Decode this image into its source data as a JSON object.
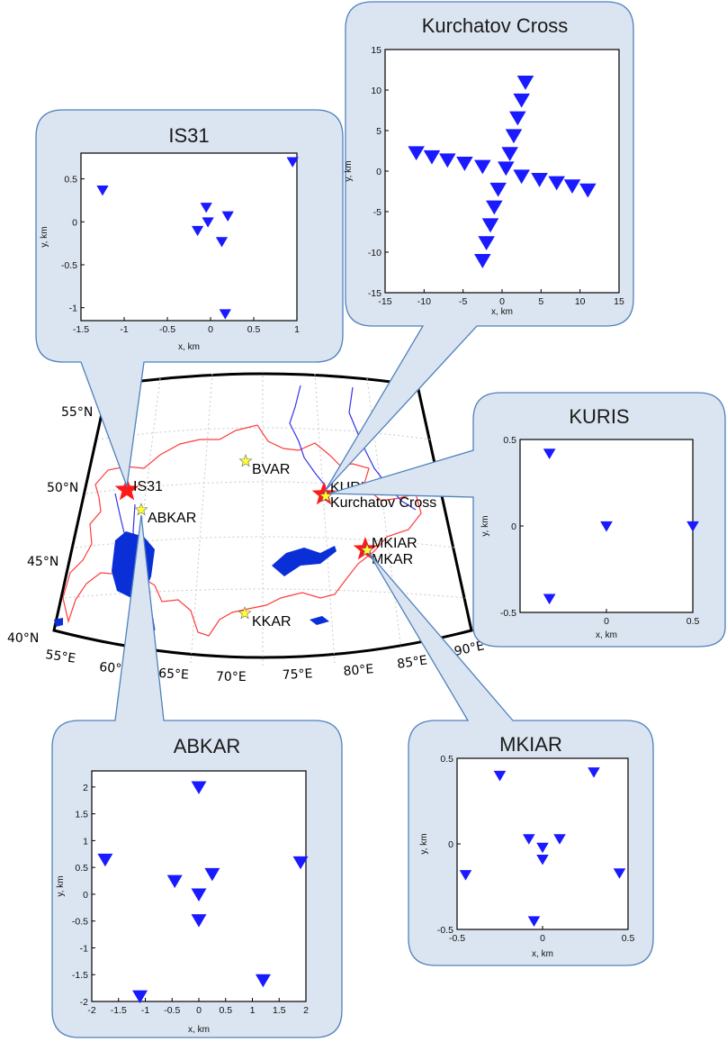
{
  "map": {
    "lat_labels": [
      "55°N",
      "50°N",
      "45°N",
      "40°N"
    ],
    "lon_labels": [
      "55°E",
      "60°E",
      "65°E",
      "70°E",
      "75°E",
      "80°E",
      "85°E",
      "90°E"
    ],
    "stations": [
      {
        "name": "IS31",
        "type": "major"
      },
      {
        "name": "ABKAR",
        "type": "minor"
      },
      {
        "name": "BVAR",
        "type": "minor"
      },
      {
        "name": "KURIS",
        "type": "major"
      },
      {
        "name": "Kurchatov Cross",
        "type": "minor"
      },
      {
        "name": "MKIAR",
        "type": "major"
      },
      {
        "name": "MKAR",
        "type": "minor"
      },
      {
        "name": "KKAR",
        "type": "minor"
      }
    ],
    "colors": {
      "border": "#ff3b3b",
      "rivers": "#3333ee",
      "lakes": "#0a2fd6",
      "major_star": "#ff1a1a",
      "minor_star": "#ffff33",
      "grid": "#c8c8c8",
      "callout": "#dbe5f1",
      "callout_edge": "#4f81bd"
    }
  },
  "chart_data": [
    {
      "type": "scatter",
      "title": "IS31",
      "xlabel": "x, km",
      "ylabel": "y, km",
      "xlim": [
        -1.5,
        1
      ],
      "ylim": [
        -1.15,
        0.8
      ],
      "xticks": [
        "-1.5",
        "-1",
        "-0.5",
        "0",
        "0.5",
        "1"
      ],
      "yticks": [
        "0.5",
        "0",
        "-0.5",
        "-1"
      ],
      "x": [
        -1.25,
        -0.05,
        -0.15,
        -0.03,
        0.2,
        0.13,
        0.17,
        0.95
      ],
      "y": [
        0.37,
        0.17,
        -0.1,
        0.0,
        0.07,
        -0.23,
        -1.07,
        0.7
      ]
    },
    {
      "type": "scatter",
      "title": "Kurchatov Cross",
      "xlabel": "x, km",
      "ylabel": "y, km",
      "xlim": [
        -15,
        15
      ],
      "ylim": [
        -15,
        15
      ],
      "xticks": [
        "-15",
        "-10",
        "-5",
        "0",
        "5",
        "10",
        "15"
      ],
      "yticks": [
        "15",
        "10",
        "5",
        "0",
        "-5",
        "-10",
        "-15"
      ],
      "x": [
        -11,
        -9,
        -7,
        -4.8,
        -2.5,
        2.5,
        4.8,
        7,
        9,
        11,
        3,
        2.5,
        2,
        1.5,
        1,
        0.5,
        -0.5,
        -1,
        -1.5,
        -2,
        -2.5
      ],
      "y": [
        2.3,
        1.8,
        1.4,
        1.0,
        0.6,
        -0.6,
        -1.0,
        -1.4,
        -1.8,
        -2.3,
        11,
        8.8,
        6.6,
        4.4,
        2.2,
        0.4,
        -2.2,
        -4.4,
        -6.6,
        -8.8,
        -11
      ]
    },
    {
      "type": "scatter",
      "title": "KURIS",
      "xlabel": "x, km",
      "ylabel": "y, km",
      "xlim": [
        -0.5,
        0.5
      ],
      "ylim": [
        -0.5,
        0.5
      ],
      "xticks": [
        "0",
        "0.5"
      ],
      "yticks": [
        "0.5",
        "0",
        "-0.5"
      ],
      "x": [
        -0.33,
        -0.33,
        0.0,
        0.5
      ],
      "y": [
        0.42,
        -0.42,
        0.0,
        0.0
      ]
    },
    {
      "type": "scatter",
      "title": "ABKAR",
      "xlabel": "x, km",
      "ylabel": "y, km",
      "xlim": [
        -2,
        2
      ],
      "ylim": [
        -2,
        2.3
      ],
      "xticks": [
        "-2",
        "-1.5",
        "-1",
        "-0.5",
        "0",
        "0.5",
        "1",
        "1.5",
        "2"
      ],
      "yticks": [
        "2",
        "1.5",
        "1",
        "0.5",
        "0",
        "-0.5",
        "-1",
        "-1.5",
        "-2"
      ],
      "x": [
        -1.75,
        -0.45,
        0.0,
        0.0,
        0.25,
        0.0,
        1.9,
        -1.1,
        1.2
      ],
      "y": [
        0.65,
        0.25,
        0.0,
        -0.48,
        0.38,
        2.0,
        0.6,
        -1.9,
        -1.6
      ]
    },
    {
      "type": "scatter",
      "title": "MKIAR",
      "xlabel": "x, km",
      "ylabel": "y, km",
      "xlim": [
        -0.5,
        0.5
      ],
      "ylim": [
        -0.5,
        0.5
      ],
      "xticks": [
        "-0.5",
        "0",
        "0.5"
      ],
      "yticks": [
        "0.5",
        "0",
        "-0.5"
      ],
      "x": [
        -0.45,
        -0.25,
        -0.08,
        0.0,
        0.0,
        0.1,
        0.3,
        0.45,
        -0.05
      ],
      "y": [
        -0.18,
        0.4,
        0.03,
        -0.02,
        -0.09,
        0.03,
        0.42,
        -0.17,
        -0.45
      ]
    }
  ]
}
